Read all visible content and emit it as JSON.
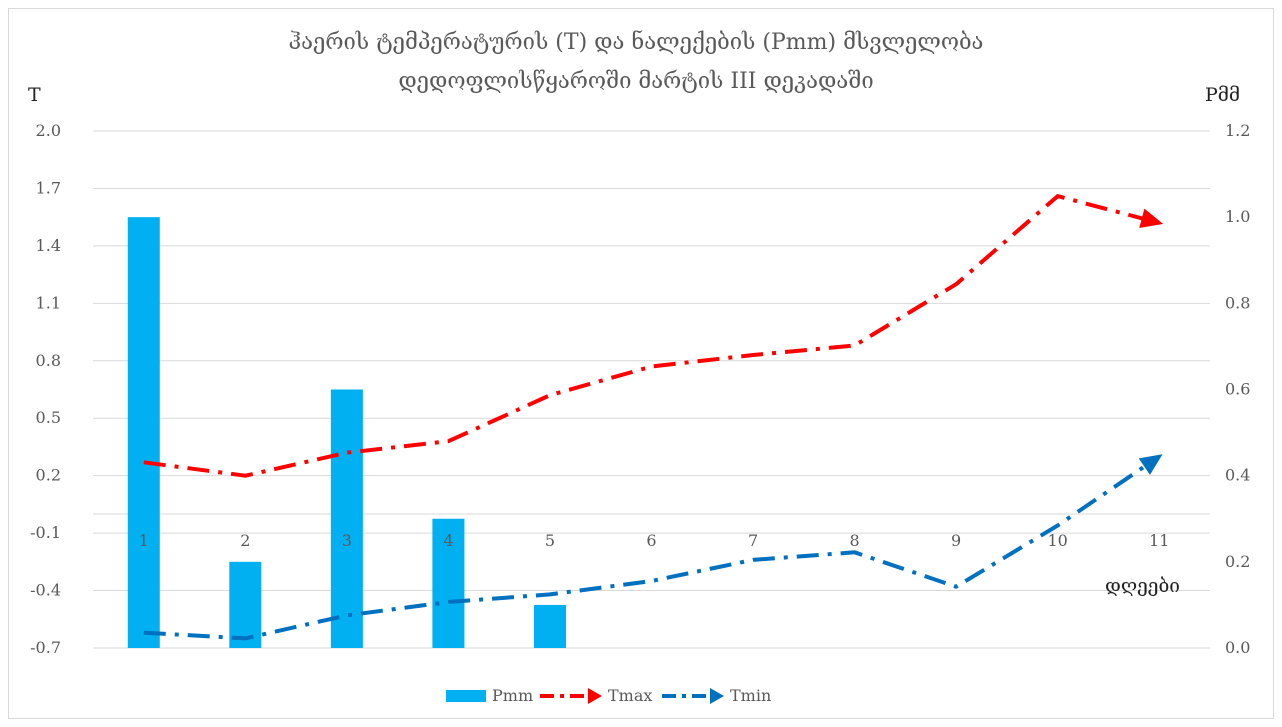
{
  "chart_data": {
    "type": "bar+line",
    "title_lines": [
      "ჰაერის ტემპერატურის (T) და ნალექების (Pmm)  მსვლელობა",
      "დედოფლისწყაროში მარტის III დეკადაში"
    ],
    "y_left_label": "T",
    "y_right_label": "Pმმ",
    "x_label": "დღეები",
    "categories": [
      "1",
      "2",
      "3",
      "4",
      "5",
      "6",
      "7",
      "8",
      "9",
      "10",
      "11"
    ],
    "y_left_ticks": [
      "2.0",
      "1.7",
      "1.4",
      "1.1",
      "0.8",
      "0.5",
      "0.2",
      "-0.1",
      "-0.4",
      "-0.7"
    ],
    "y_right_ticks": [
      "1.2",
      "1.0",
      "0.8",
      "0.6",
      "0.4",
      "0.2",
      "0.0"
    ],
    "y_left_range": [
      -0.7,
      2.0
    ],
    "y_right_range": [
      0.0,
      1.2
    ],
    "series": [
      {
        "name": "Pmm",
        "kind": "bar",
        "axis": "right",
        "color": "#00b0f0",
        "values": [
          1.0,
          0.2,
          0.6,
          0.3,
          0.1,
          null,
          null,
          null,
          null,
          null,
          null
        ]
      },
      {
        "name": "Tmax",
        "kind": "line",
        "axis": "left",
        "color": "#ff0000",
        "dash": "long-dash-dot",
        "marker_end": "arrow",
        "values": [
          0.27,
          0.2,
          0.32,
          0.38,
          0.62,
          0.77,
          0.83,
          0.88,
          1.2,
          1.66,
          1.52
        ]
      },
      {
        "name": "Tmin",
        "kind": "line",
        "axis": "left",
        "color": "#0070c0",
        "dash": "long-dash-dot",
        "marker_end": "arrow",
        "values": [
          -0.62,
          -0.65,
          -0.53,
          -0.46,
          -0.42,
          -0.35,
          -0.24,
          -0.2,
          -0.38,
          -0.06,
          0.3
        ]
      }
    ],
    "legend_position": "bottom",
    "grid": "horizontal"
  }
}
